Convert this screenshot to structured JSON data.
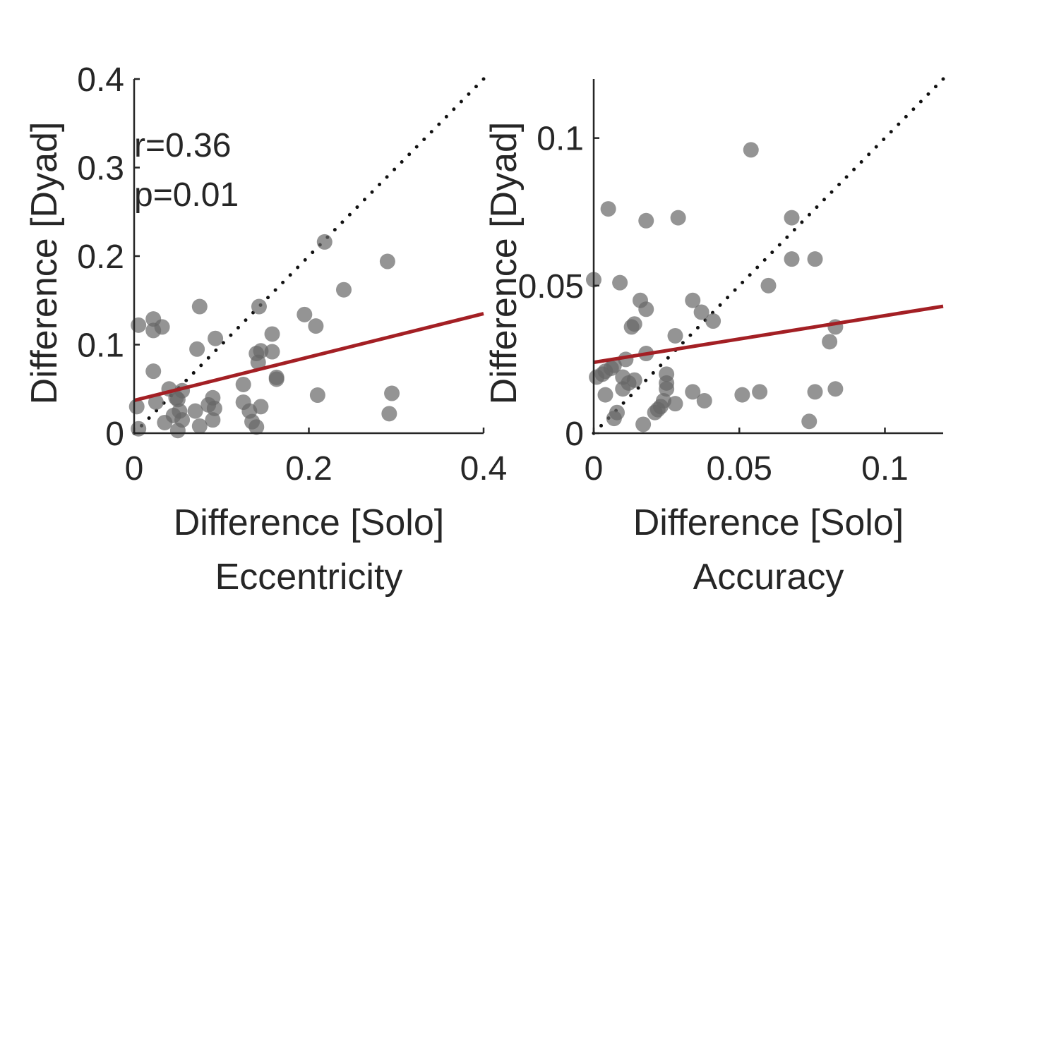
{
  "chart_data": [
    {
      "type": "scatter",
      "title": "",
      "xlabel": "Difference [Solo]",
      "ylabel": "Difference [Dyad]",
      "panel_label": "Eccentricity",
      "xlim": [
        0,
        0.4
      ],
      "ylim": [
        0,
        0.4
      ],
      "xticks": [
        "0",
        "0.2",
        "0.4"
      ],
      "xtick_values": [
        0,
        0.2,
        0.4
      ],
      "yticks": [
        "0",
        "0.1",
        "0.2",
        "0.3",
        "0.4"
      ],
      "ytick_values": [
        0,
        0.1,
        0.2,
        0.3,
        0.4
      ],
      "grid": false,
      "annotations": [
        "r=0.36",
        "p=0.01"
      ],
      "identity_line": true,
      "fit_line": {
        "x": [
          0,
          0.4
        ],
        "y": [
          0.037,
          0.135
        ],
        "color": "#a31f24"
      },
      "point_color": "#666666",
      "points": [
        [
          0.005,
          0.122
        ],
        [
          0.022,
          0.129
        ],
        [
          0.022,
          0.116
        ],
        [
          0.032,
          0.12
        ],
        [
          0.022,
          0.07
        ],
        [
          0.003,
          0.03
        ],
        [
          0.005,
          0.005
        ],
        [
          0.025,
          0.035
        ],
        [
          0.035,
          0.012
        ],
        [
          0.04,
          0.05
        ],
        [
          0.045,
          0.02
        ],
        [
          0.048,
          0.04
        ],
        [
          0.05,
          0.038
        ],
        [
          0.052,
          0.025
        ],
        [
          0.05,
          0.003
        ],
        [
          0.055,
          0.015
        ],
        [
          0.055,
          0.048
        ],
        [
          0.07,
          0.025
        ],
        [
          0.072,
          0.095
        ],
        [
          0.075,
          0.008
        ],
        [
          0.075,
          0.143
        ],
        [
          0.085,
          0.032
        ],
        [
          0.09,
          0.04
        ],
        [
          0.092,
          0.028
        ],
        [
          0.09,
          0.015
        ],
        [
          0.093,
          0.107
        ],
        [
          0.125,
          0.055
        ],
        [
          0.125,
          0.035
        ],
        [
          0.132,
          0.025
        ],
        [
          0.135,
          0.013
        ],
        [
          0.14,
          0.007
        ],
        [
          0.14,
          0.09
        ],
        [
          0.142,
          0.08
        ],
        [
          0.145,
          0.093
        ],
        [
          0.143,
          0.143
        ],
        [
          0.145,
          0.03
        ],
        [
          0.158,
          0.112
        ],
        [
          0.158,
          0.092
        ],
        [
          0.163,
          0.063
        ],
        [
          0.163,
          0.061
        ],
        [
          0.195,
          0.134
        ],
        [
          0.208,
          0.121
        ],
        [
          0.21,
          0.043
        ],
        [
          0.218,
          0.216
        ],
        [
          0.24,
          0.162
        ],
        [
          0.29,
          0.194
        ],
        [
          0.292,
          0.022
        ],
        [
          0.295,
          0.045
        ]
      ]
    },
    {
      "type": "scatter",
      "title": "",
      "xlabel": "Difference [Solo]",
      "ylabel": "Difference [Dyad]",
      "panel_label": "Accuracy",
      "xlim": [
        0,
        0.12
      ],
      "ylim": [
        0,
        0.12
      ],
      "xticks": [
        "0",
        "0.05",
        "0.1"
      ],
      "xtick_values": [
        0,
        0.05,
        0.1
      ],
      "yticks": [
        "0",
        "0.05",
        "0.1"
      ],
      "ytick_values": [
        0,
        0.05,
        0.1
      ],
      "grid": false,
      "identity_line": true,
      "fit_line": {
        "x": [
          0,
          0.12
        ],
        "y": [
          0.024,
          0.043
        ],
        "color": "#a31f24"
      },
      "point_color": "#666666",
      "points": [
        [
          0.0,
          0.052
        ],
        [
          0.001,
          0.019
        ],
        [
          0.003,
          0.02
        ],
        [
          0.004,
          0.021
        ],
        [
          0.005,
          0.076
        ],
        [
          0.004,
          0.013
        ],
        [
          0.006,
          0.022
        ],
        [
          0.007,
          0.023
        ],
        [
          0.007,
          0.005
        ],
        [
          0.008,
          0.007
        ],
        [
          0.009,
          0.051
        ],
        [
          0.01,
          0.015
        ],
        [
          0.01,
          0.019
        ],
        [
          0.011,
          0.025
        ],
        [
          0.012,
          0.017
        ],
        [
          0.013,
          0.036
        ],
        [
          0.014,
          0.037
        ],
        [
          0.014,
          0.018
        ],
        [
          0.016,
          0.045
        ],
        [
          0.017,
          0.003
        ],
        [
          0.018,
          0.072
        ],
        [
          0.018,
          0.042
        ],
        [
          0.018,
          0.027
        ],
        [
          0.021,
          0.007
        ],
        [
          0.022,
          0.008
        ],
        [
          0.023,
          0.009
        ],
        [
          0.024,
          0.011
        ],
        [
          0.025,
          0.02
        ],
        [
          0.025,
          0.017
        ],
        [
          0.025,
          0.015
        ],
        [
          0.028,
          0.01
        ],
        [
          0.029,
          0.073
        ],
        [
          0.028,
          0.033
        ],
        [
          0.034,
          0.045
        ],
        [
          0.034,
          0.014
        ],
        [
          0.037,
          0.041
        ],
        [
          0.038,
          0.011
        ],
        [
          0.041,
          0.038
        ],
        [
          0.051,
          0.013
        ],
        [
          0.054,
          0.096
        ],
        [
          0.057,
          0.014
        ],
        [
          0.06,
          0.05
        ],
        [
          0.068,
          0.073
        ],
        [
          0.068,
          0.059
        ],
        [
          0.074,
          0.004
        ],
        [
          0.076,
          0.014
        ],
        [
          0.076,
          0.059
        ],
        [
          0.081,
          0.031
        ],
        [
          0.083,
          0.036
        ],
        [
          0.083,
          0.015
        ]
      ]
    }
  ]
}
